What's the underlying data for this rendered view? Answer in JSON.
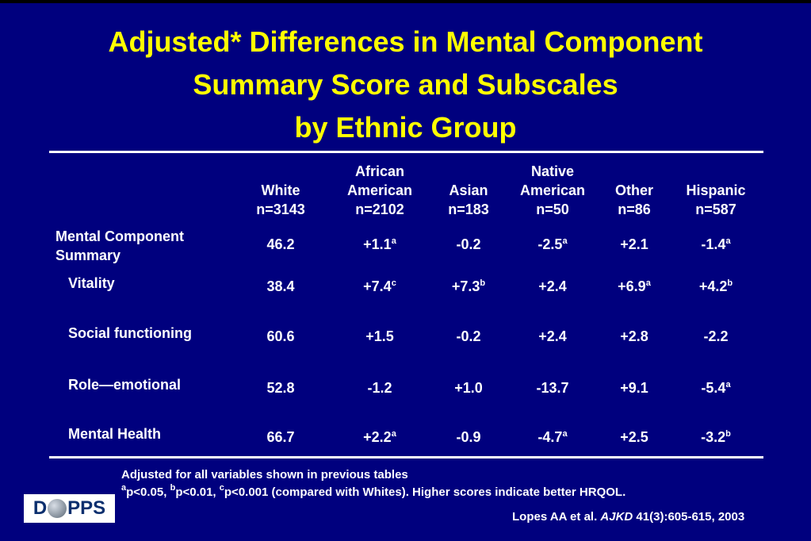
{
  "title": {
    "line1": "Adjusted* Differences in Mental Component",
    "line2": "Summary Score and Subscales",
    "line3": "by Ethnic Group"
  },
  "table": {
    "columns": [
      {
        "name": "White",
        "name2": "",
        "n": "n=3143"
      },
      {
        "name": "African",
        "name2": "American",
        "n": "n=2102"
      },
      {
        "name": "Asian",
        "name2": "",
        "n": "n=183"
      },
      {
        "name": "Native",
        "name2": "American",
        "n": "n=50"
      },
      {
        "name": "Other",
        "name2": "",
        "n": "n=86"
      },
      {
        "name": "Hispanic",
        "name2": "",
        "n": "n=587"
      }
    ],
    "rows": [
      {
        "label": "Mental Component",
        "label2": "Summary",
        "cells": [
          {
            "v": "46.2",
            "s": ""
          },
          {
            "v": "+1.1",
            "s": "a"
          },
          {
            "v": "-0.2",
            "s": ""
          },
          {
            "v": "-2.5",
            "s": "a"
          },
          {
            "v": "+2.1",
            "s": ""
          },
          {
            "v": "-1.4",
            "s": "a"
          }
        ]
      },
      {
        "label": "Vitality",
        "label2": "",
        "cells": [
          {
            "v": "38.4",
            "s": ""
          },
          {
            "v": "+7.4",
            "s": "c"
          },
          {
            "v": "+7.3",
            "s": "b"
          },
          {
            "v": "+2.4",
            "s": ""
          },
          {
            "v": "+6.9",
            "s": "a"
          },
          {
            "v": "+4.2",
            "s": "b"
          }
        ]
      },
      {
        "label": "Social functioning",
        "label2": "",
        "cells": [
          {
            "v": "60.6",
            "s": ""
          },
          {
            "v": "+1.5",
            "s": ""
          },
          {
            "v": "-0.2",
            "s": ""
          },
          {
            "v": "+2.4",
            "s": ""
          },
          {
            "v": "+2.8",
            "s": ""
          },
          {
            "v": "-2.2",
            "s": ""
          }
        ]
      },
      {
        "label": "Role—emotional",
        "label2": "",
        "cells": [
          {
            "v": "52.8",
            "s": ""
          },
          {
            "v": "-1.2",
            "s": ""
          },
          {
            "v": "+1.0",
            "s": ""
          },
          {
            "v": "-13.7",
            "s": ""
          },
          {
            "v": "+9.1",
            "s": ""
          },
          {
            "v": "-5.4",
            "s": "a"
          }
        ]
      },
      {
        "label": "Mental Health",
        "label2": "",
        "cells": [
          {
            "v": "66.7",
            "s": ""
          },
          {
            "v": "+2.2",
            "s": "a"
          },
          {
            "v": "-0.9",
            "s": ""
          },
          {
            "v": "-4.7",
            "s": "a"
          },
          {
            "v": "+2.5",
            "s": ""
          },
          {
            "v": "-3.2",
            "s": "b"
          }
        ]
      }
    ]
  },
  "footnotes": {
    "adjusted": "Adjusted for all variables shown in previous tables",
    "sig_a": "a",
    "sig_a_text": "p<0.05, ",
    "sig_b": "b",
    "sig_b_text": "p<0.01, ",
    "sig_c": "c",
    "sig_c_text": "p<0.001 (compared with Whites).  Higher scores indicate better HRQOL."
  },
  "citation": {
    "authors": "Lopes AA et al. ",
    "journal": "AJKD",
    "ref": " 41(3):605-615, 2003"
  },
  "logo": {
    "left": "D",
    "right": "PPS"
  }
}
